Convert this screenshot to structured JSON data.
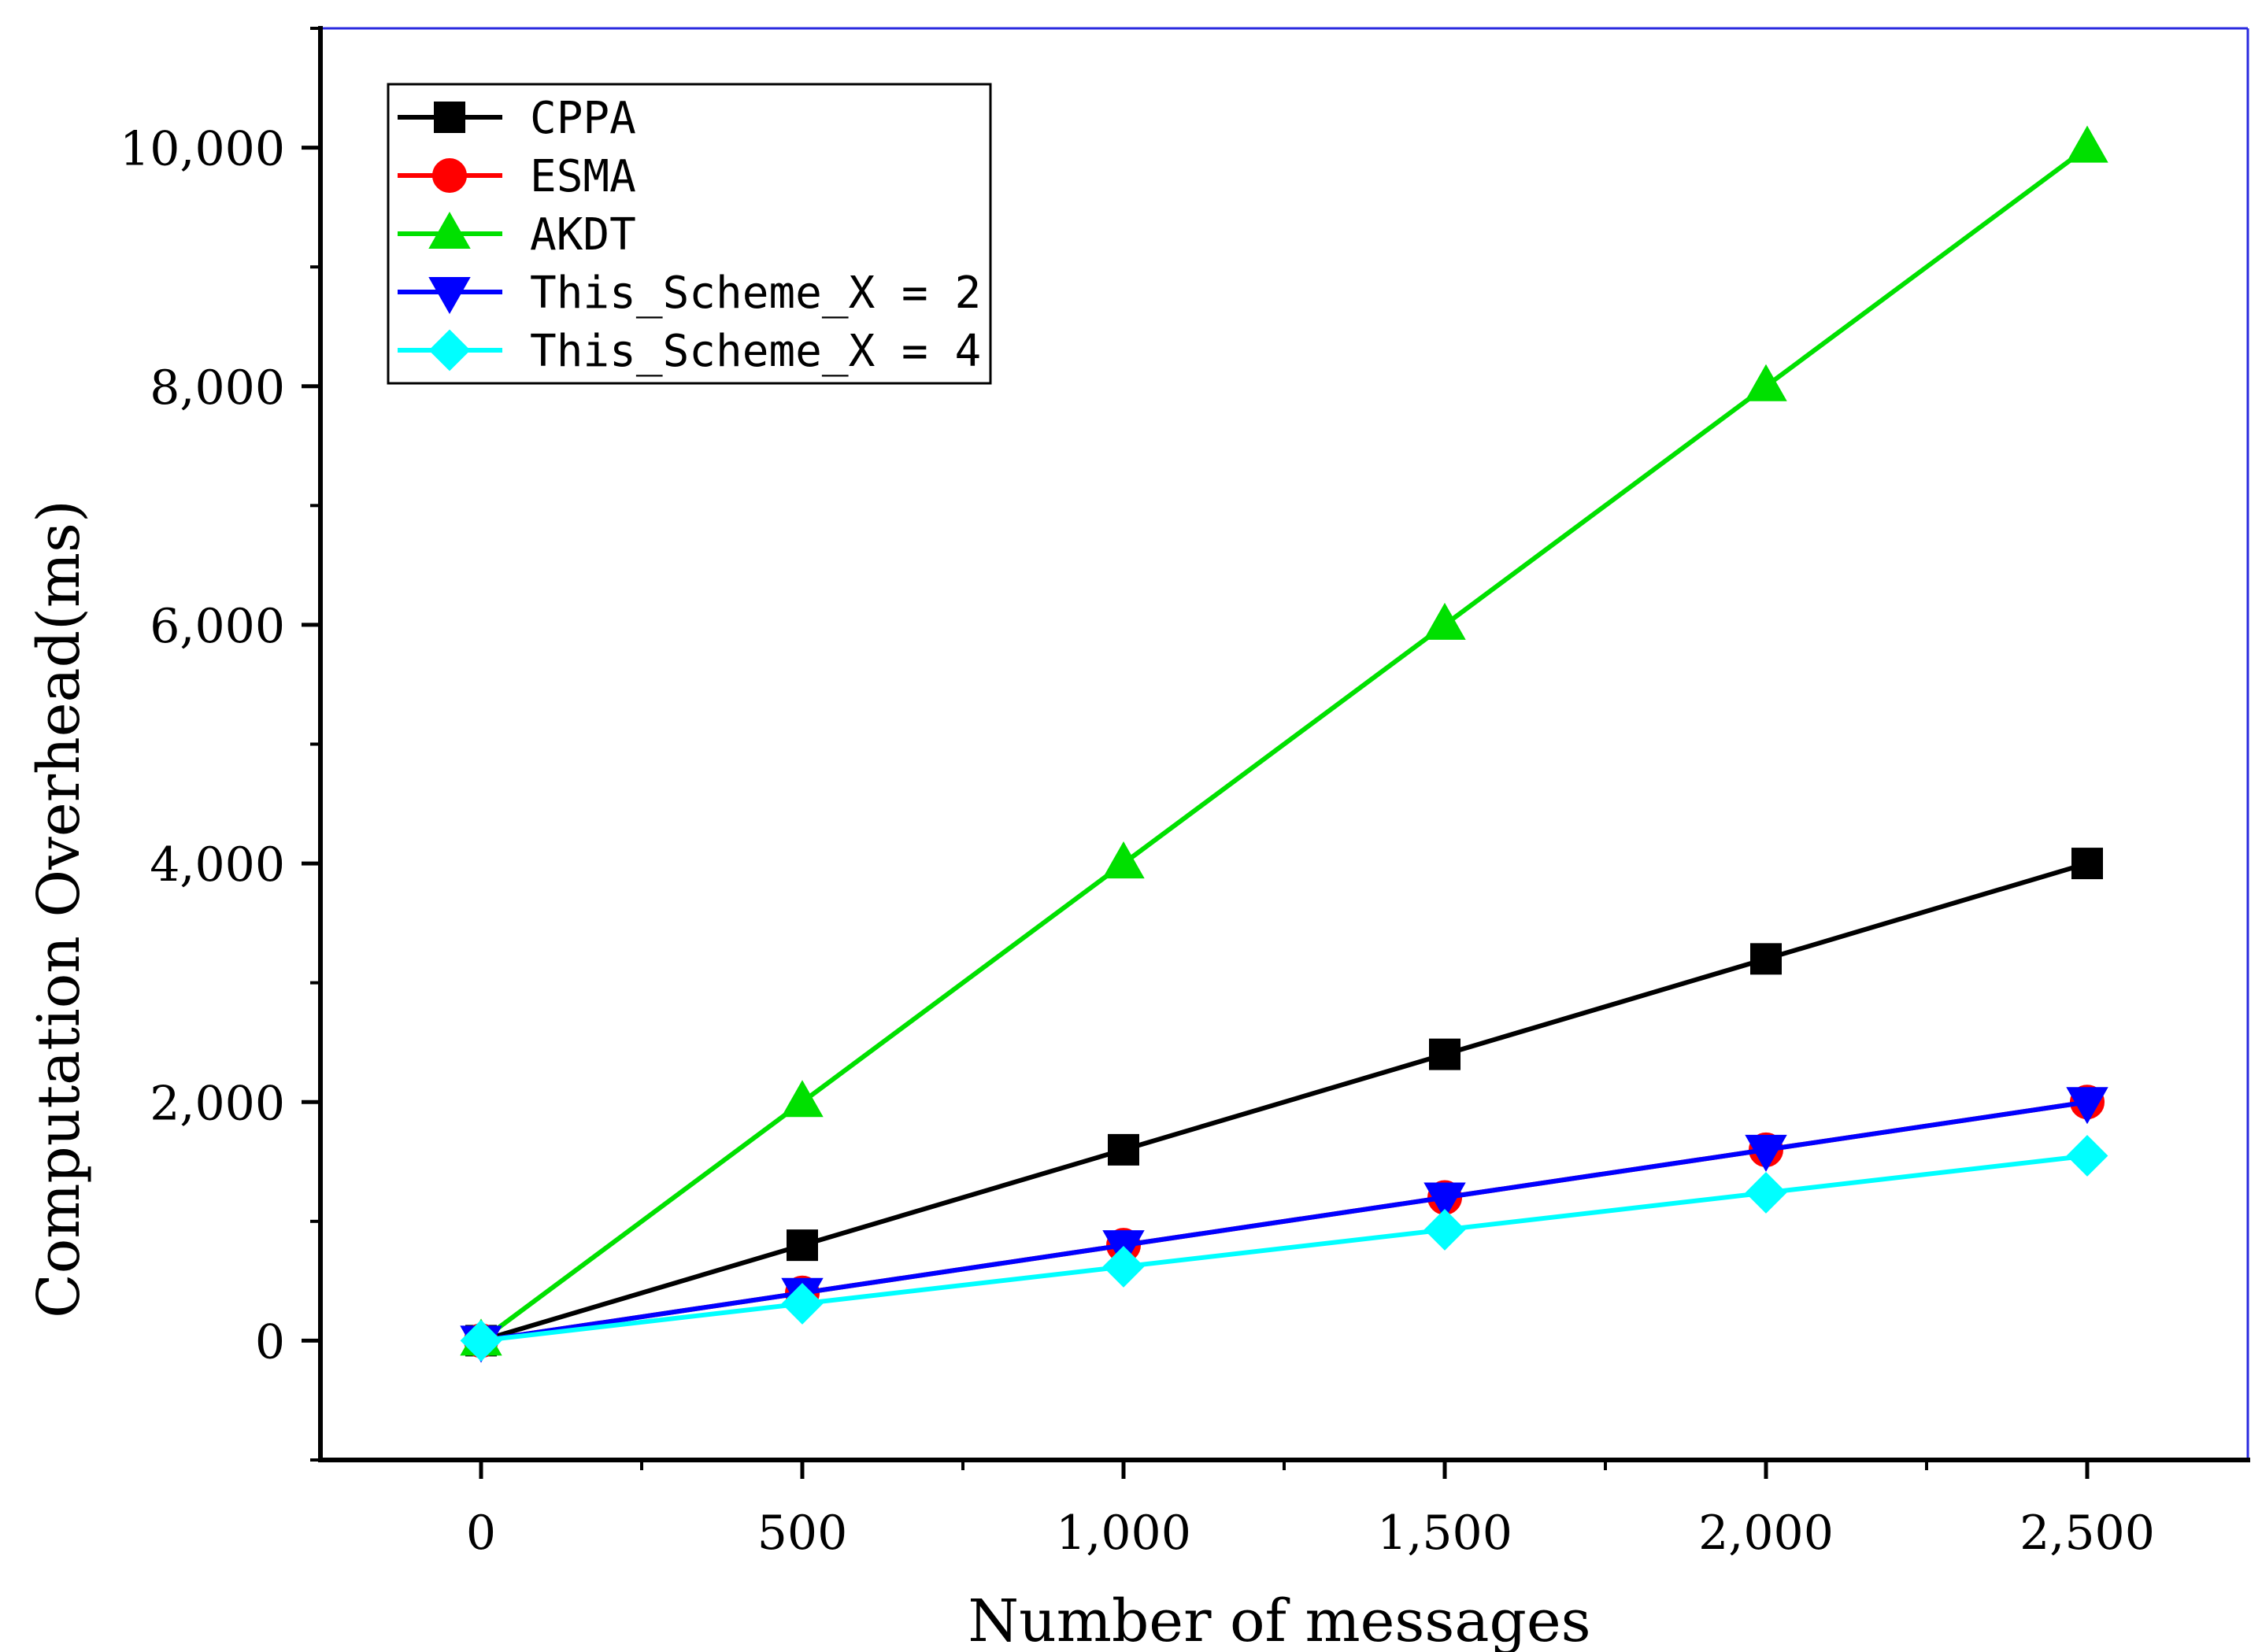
{
  "chart_data": {
    "type": "line",
    "title": "",
    "xlabel": "Number of messages",
    "ylabel": "Computation Overhead(ms)",
    "x": [
      0,
      500,
      1000,
      1500,
      2000,
      2500
    ],
    "x_tick_labels": [
      "0",
      "500",
      "1,000",
      "1,500",
      "2,000",
      "2,500"
    ],
    "y_ticks": [
      0,
      2000,
      4000,
      6000,
      8000,
      10000
    ],
    "y_tick_labels": [
      "0",
      "2,000",
      "4,000",
      "6,000",
      "8,000",
      "10,000"
    ],
    "xlim": [
      -250,
      2750
    ],
    "ylim": [
      -1000,
      11000
    ],
    "legend_position": "top-left",
    "series": [
      {
        "name": "CPPA",
        "color": "#000000",
        "marker": "square",
        "values": [
          0,
          800,
          1600,
          2400,
          3200,
          4000
        ]
      },
      {
        "name": "ESMA",
        "color": "#ff0000",
        "marker": "circle",
        "values": [
          0,
          400,
          800,
          1200,
          1600,
          2000
        ]
      },
      {
        "name": "AKDT",
        "color": "#00e000",
        "marker": "triangle-up",
        "values": [
          0,
          2000,
          4000,
          6000,
          8000,
          10000
        ]
      },
      {
        "name": "This_Scheme_X = 2",
        "color": "#0000ff",
        "marker": "triangle-down",
        "values": [
          0,
          400,
          800,
          1200,
          1600,
          2000
        ]
      },
      {
        "name": "This_Scheme_X = 4",
        "color": "#00ffff",
        "marker": "diamond",
        "values": [
          0,
          310,
          620,
          930,
          1240,
          1550
        ]
      }
    ]
  }
}
